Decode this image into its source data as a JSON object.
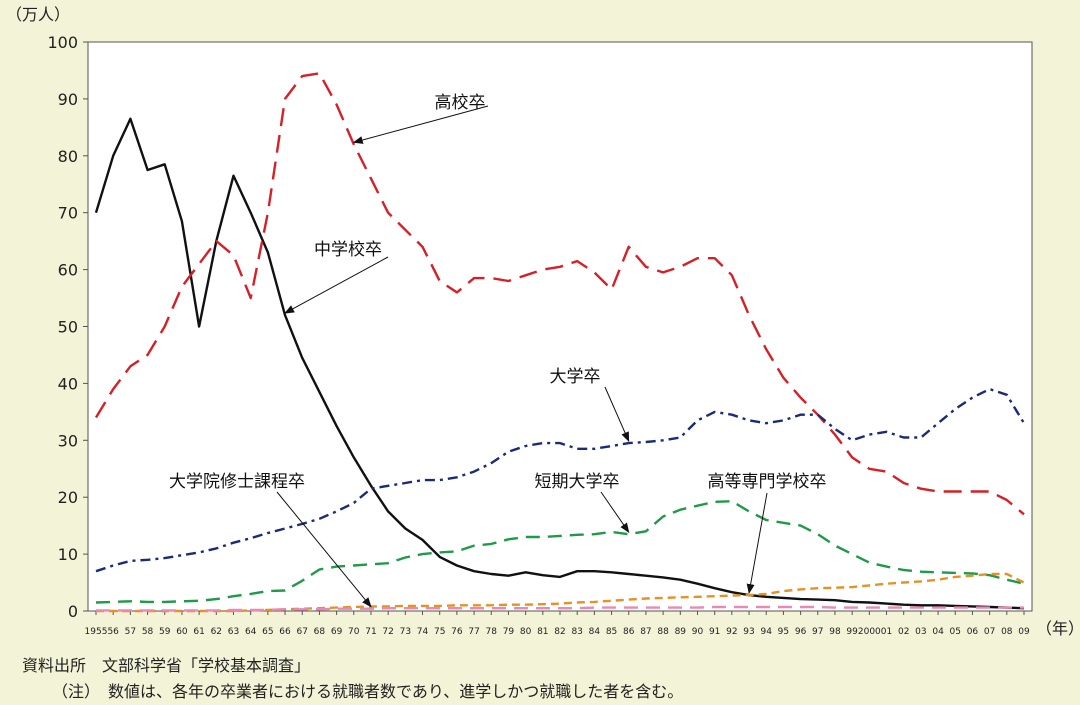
{
  "chart_data": {
    "type": "line",
    "y_unit": "（万人）",
    "x_unit": "（年）",
    "ylim": [
      0,
      100
    ],
    "y_ticks": [
      0,
      10,
      20,
      30,
      40,
      50,
      60,
      70,
      80,
      90,
      100
    ],
    "x_tick_labels": [
      "1955",
      "56",
      "57",
      "58",
      "59",
      "60",
      "61",
      "62",
      "63",
      "64",
      "65",
      "66",
      "67",
      "68",
      "69",
      "70",
      "71",
      "72",
      "73",
      "74",
      "75",
      "76",
      "77",
      "78",
      "79",
      "80",
      "81",
      "82",
      "83",
      "84",
      "85",
      "86",
      "87",
      "88",
      "89",
      "90",
      "91",
      "92",
      "93",
      "94",
      "95",
      "96",
      "97",
      "98",
      "99",
      "2000",
      "01",
      "02",
      "03",
      "04",
      "05",
      "06",
      "07",
      "08",
      "09"
    ],
    "x": [
      1955,
      1956,
      1957,
      1958,
      1959,
      1960,
      1961,
      1962,
      1963,
      1964,
      1965,
      1966,
      1967,
      1968,
      1969,
      1970,
      1971,
      1972,
      1973,
      1974,
      1975,
      1976,
      1977,
      1978,
      1979,
      1980,
      1981,
      1982,
      1983,
      1984,
      1985,
      1986,
      1987,
      1988,
      1989,
      1990,
      1991,
      1992,
      1993,
      1994,
      1995,
      1996,
      1997,
      1998,
      1999,
      2000,
      2001,
      2002,
      2003,
      2004,
      2005,
      2006,
      2007,
      2008,
      2009
    ],
    "grid": false,
    "series": [
      {
        "name": "中学校卒",
        "color": "#111111",
        "dash": "none",
        "values": [
          70,
          80,
          86.5,
          77.5,
          78.5,
          68.5,
          50,
          65,
          76.5,
          70,
          63,
          52,
          44.5,
          38.5,
          32.5,
          27,
          22,
          17.5,
          14.5,
          12.5,
          9.5,
          8,
          7,
          6.5,
          6.2,
          6.8,
          6.3,
          6,
          7,
          7,
          6.8,
          6.5,
          6.2,
          5.9,
          5.5,
          4.8,
          4,
          3.3,
          2.8,
          2.5,
          2.3,
          2.1,
          2,
          1.9,
          1.6,
          1.5,
          1.3,
          1.1,
          1,
          1,
          0.9,
          0.8,
          0.7,
          0.6,
          0.5
        ]
      },
      {
        "name": "高校卒",
        "color": "#d62027",
        "dash": "18,9",
        "values": [
          34,
          39,
          43,
          45,
          50,
          57,
          61,
          65,
          62.5,
          55,
          70,
          90,
          94,
          94.5,
          89,
          82,
          76,
          70,
          67,
          64,
          58,
          56,
          58.5,
          58.5,
          58,
          59,
          60,
          60.5,
          61.5,
          59.5,
          56.5,
          64,
          60.5,
          59.5,
          60.5,
          62,
          62,
          59,
          52,
          46,
          41,
          37.5,
          34.5,
          31,
          27,
          25,
          24.5,
          22.5,
          21.5,
          21,
          21,
          21,
          21,
          19.5,
          17
        ]
      },
      {
        "name": "大学卒",
        "color": "#1b2a7a",
        "dash": "10,5,3,5",
        "values": [
          7,
          8,
          8.8,
          9,
          9.3,
          9.8,
          10.3,
          11,
          12,
          12.8,
          13.7,
          14.5,
          15.3,
          16.2,
          17.5,
          19,
          21.5,
          22,
          22.5,
          23,
          23,
          23.5,
          24.5,
          26,
          28,
          29,
          29.5,
          29.5,
          28.5,
          28.5,
          29,
          29.5,
          29.7,
          30,
          30.5,
          33.5,
          35,
          34.5,
          33.5,
          33,
          33.5,
          34.5,
          34.5,
          32,
          30,
          31,
          31.5,
          30.5,
          30.5,
          33,
          35.5,
          37.5,
          39,
          38,
          33
        ]
      },
      {
        "name": "短期大学卒",
        "color": "#1f9a48",
        "dash": "14,8",
        "values": [
          1.5,
          1.6,
          1.7,
          1.6,
          1.6,
          1.7,
          1.8,
          2.1,
          2.6,
          3,
          3.5,
          3.6,
          5.3,
          7.3,
          7.8,
          8,
          8.2,
          8.4,
          9.4,
          10,
          10.3,
          10.5,
          11.5,
          11.8,
          12.6,
          13,
          13,
          13.2,
          13.4,
          13.5,
          13.9,
          13.5,
          14,
          16.6,
          17.8,
          18.5,
          19.2,
          19.3,
          17.5,
          16,
          15.5,
          15,
          13.5,
          11.5,
          10,
          8.5,
          7.8,
          7.2,
          6.9,
          6.8,
          6.7,
          6.6,
          6.3,
          5.5,
          4.8
        ]
      },
      {
        "name": "高等専門学校卒",
        "color": "#e69125",
        "dash": "8,5",
        "values": [
          0,
          0,
          0,
          0,
          0,
          0,
          0,
          0,
          0,
          0.1,
          0.2,
          0.3,
          0.4,
          0.5,
          0.6,
          0.7,
          0.8,
          0.8,
          0.9,
          0.9,
          0.9,
          1,
          1,
          1,
          1.1,
          1.1,
          1.2,
          1.3,
          1.5,
          1.6,
          1.8,
          2,
          2.2,
          2.3,
          2.4,
          2.5,
          2.6,
          2.7,
          2.8,
          3,
          3.5,
          3.8,
          4,
          4.1,
          4.2,
          4.5,
          4.8,
          5,
          5.2,
          5.5,
          6,
          6.2,
          6.5,
          6.5,
          5
        ]
      },
      {
        "name": "大学院修士課程卒",
        "color": "#e88ab5",
        "dash": "14,8",
        "values": [
          0.1,
          0.1,
          0.1,
          0.1,
          0.1,
          0.1,
          0.1,
          0.1,
          0.2,
          0.2,
          0.2,
          0.3,
          0.3,
          0.3,
          0.4,
          0.4,
          0.4,
          0.5,
          0.5,
          0.5,
          0.5,
          0.5,
          0.5,
          0.5,
          0.5,
          0.5,
          0.5,
          0.5,
          0.5,
          0.6,
          0.6,
          0.6,
          0.6,
          0.6,
          0.6,
          0.6,
          0.7,
          0.7,
          0.7,
          0.7,
          0.7,
          0.7,
          0.7,
          0.6,
          0.6,
          0.6,
          0.6,
          0.6,
          0.6,
          0.6,
          0.6,
          0.6,
          0.6,
          0.6,
          0.6
        ]
      }
    ],
    "annotations": [
      {
        "text": "高校卒",
        "series": "高校卒",
        "at": 1970
      },
      {
        "text": "中学校卒",
        "series": "中学校卒",
        "at": 1966
      },
      {
        "text": "大学卒",
        "series": "大学卒",
        "at": 1986
      },
      {
        "text": "短期大学卒",
        "series": "短期大学卒",
        "at": 1986
      },
      {
        "text": "大学院修士課程卒",
        "series": "大学院修士課程卒",
        "at": 1971
      },
      {
        "text": "高等専門学校卒",
        "series": "高等専門学校卒",
        "at": 1993
      }
    ]
  },
  "footer": {
    "source": "資料出所　文部科学省「学校基本調査」",
    "note": "（注）　数値は、各年の卒業者における就職者数であり、進学しかつ就職した者を含む。"
  }
}
